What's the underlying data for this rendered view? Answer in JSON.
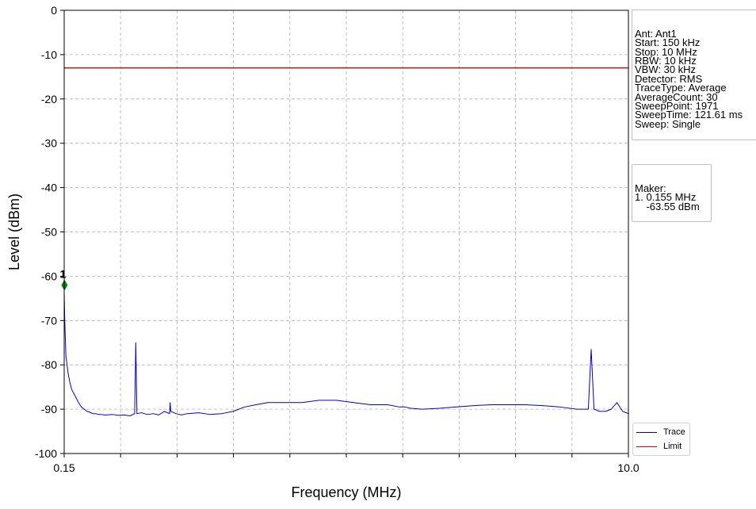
{
  "chart_data": {
    "type": "line",
    "xlabel": "Frequency (MHz)",
    "ylabel": "Level (dBm)",
    "xlim": [
      0.15,
      10.0
    ],
    "ylim": [
      -100,
      0
    ],
    "y_ticks": [
      0,
      -10,
      -20,
      -30,
      -40,
      -50,
      -60,
      -70,
      -80,
      -90,
      -100
    ],
    "x_tick_labels": [
      {
        "value": 0.15,
        "label": "0.15"
      },
      {
        "value": 10.0,
        "label": "10.0"
      }
    ],
    "grid": true,
    "legend_position": "lower-right",
    "series": [
      {
        "name": "Trace",
        "color": "#0000cc",
        "x": [
          0.15,
          0.16,
          0.17,
          0.18,
          0.2,
          0.22,
          0.25,
          0.28,
          0.32,
          0.36,
          0.4,
          0.45,
          0.5,
          0.55,
          0.6,
          0.65,
          0.7,
          0.75,
          0.8,
          0.85,
          0.9,
          1.0,
          1.1,
          1.2,
          1.3,
          1.38,
          1.4,
          1.42,
          1.5,
          1.6,
          1.7,
          1.8,
          1.9,
          1.99,
          2.0,
          2.01,
          2.1,
          2.2,
          2.3,
          2.5,
          2.7,
          2.9,
          3.1,
          3.3,
          3.5,
          3.7,
          4.0,
          4.3,
          4.6,
          4.9,
          5.2,
          5.5,
          5.8,
          6.0,
          6.1,
          6.2,
          6.4,
          6.7,
          7.0,
          7.3,
          7.6,
          7.9,
          8.2,
          8.5,
          8.8,
          9.1,
          9.3,
          9.35,
          9.4,
          9.5,
          9.6,
          9.7,
          9.8,
          9.9,
          10.0
        ],
        "values": [
          -63.6,
          -70,
          -74,
          -78,
          -80,
          -82,
          -84,
          -85.5,
          -86.5,
          -87.5,
          -88.5,
          -89.5,
          -90,
          -90.5,
          -90.7,
          -91,
          -91,
          -91.2,
          -91.2,
          -91.3,
          -91.3,
          -91.2,
          -91.4,
          -91.3,
          -91.5,
          -91,
          -75,
          -91,
          -90.8,
          -91.2,
          -91,
          -91.3,
          -90.5,
          -91,
          -88.5,
          -90.5,
          -91,
          -91.3,
          -91,
          -90.8,
          -91.2,
          -91,
          -90.5,
          -89.5,
          -89,
          -88.5,
          -88.5,
          -88.5,
          -88,
          -88,
          -88.5,
          -89,
          -89,
          -89.5,
          -89.5,
          -89.8,
          -90,
          -89.8,
          -89.5,
          -89.2,
          -89,
          -89,
          -89,
          -89.2,
          -89.5,
          -90,
          -90,
          -76.5,
          -90,
          -90.5,
          -90.5,
          -90,
          -88.5,
          -90.5,
          -91
        ]
      },
      {
        "name": "Limit",
        "color": "#dd0000",
        "x": [
          0.15,
          10.0
        ],
        "values": [
          -13,
          -13
        ]
      }
    ],
    "markers": [
      {
        "label": "1",
        "x": 0.155,
        "y": -62,
        "color": "#008800"
      }
    ]
  },
  "info_box": {
    "lines": [
      "Ant: Ant1",
      "Start: 150 kHz",
      "Stop: 10 MHz",
      "RBW: 10 kHz",
      "VBW: 30 kHz",
      "Detector: RMS",
      "TraceType: Average",
      "AverageCount: 30",
      "SweepPoint: 1971",
      "SweepTime: 121.61 ms",
      "Sweep: Single"
    ]
  },
  "marker_box": {
    "lines": [
      "Maker:",
      "1. 0.155 MHz",
      "    -63.55 dBm"
    ]
  }
}
